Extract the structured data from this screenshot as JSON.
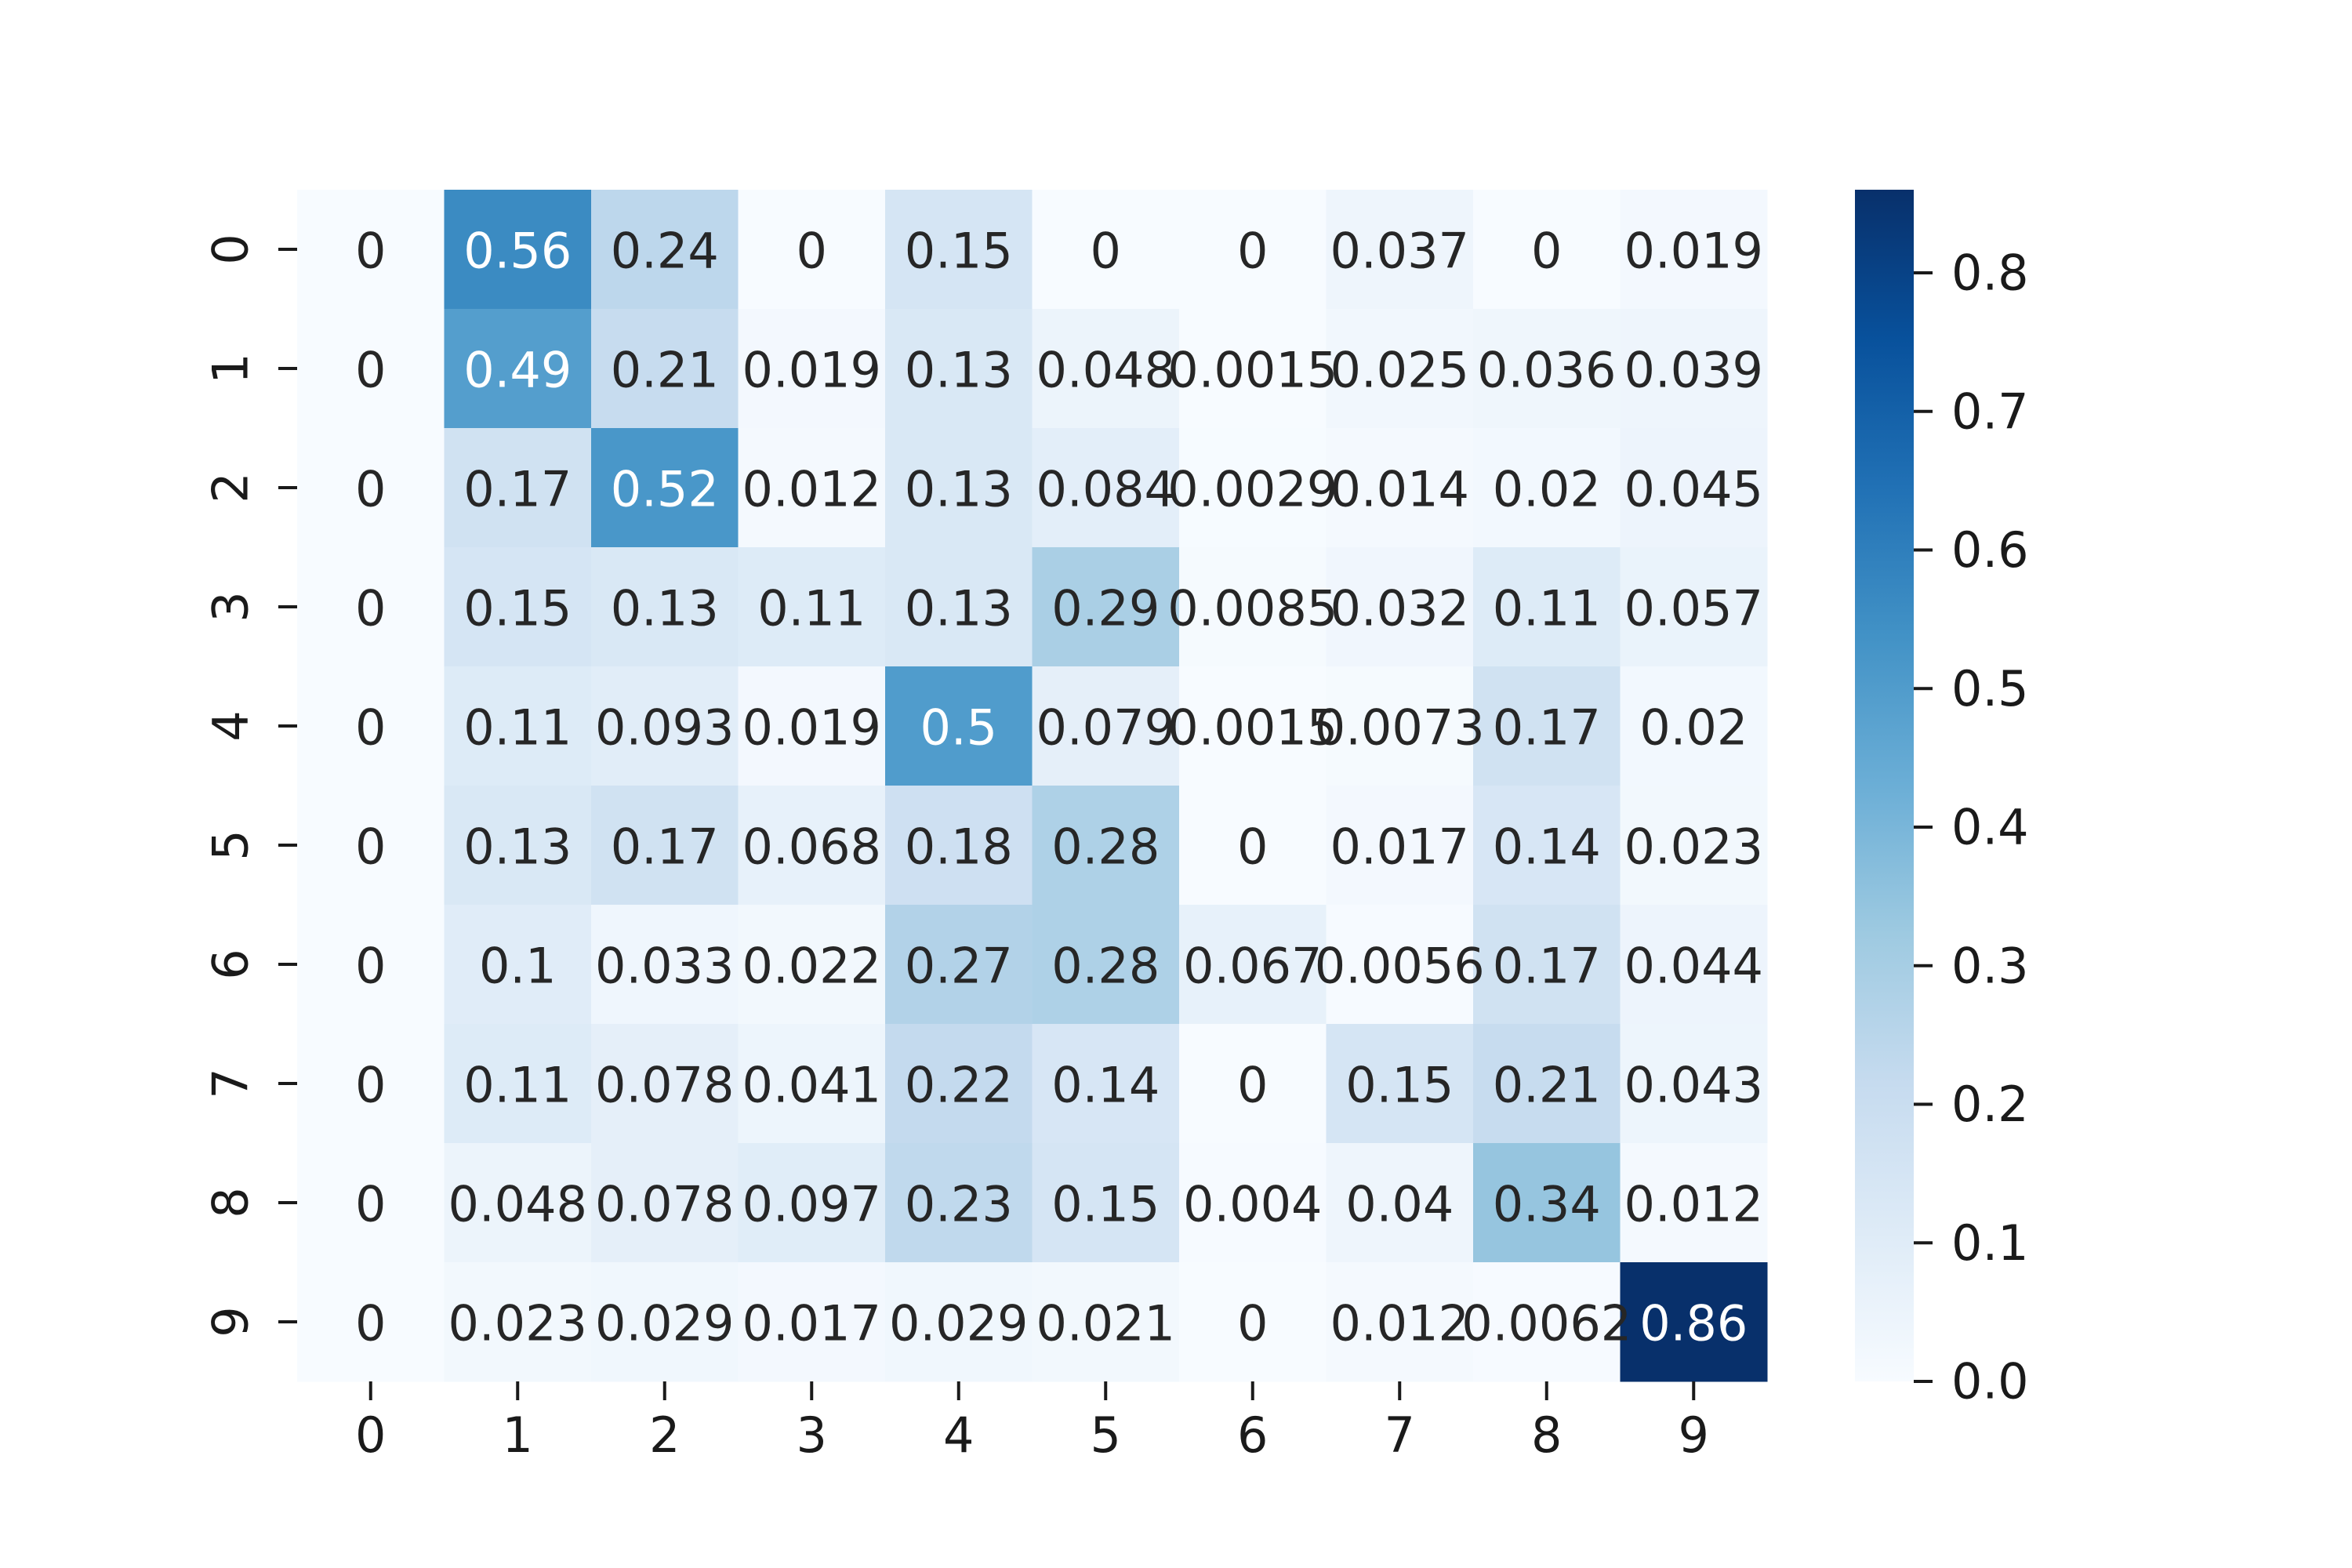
{
  "chart_data": {
    "type": "heatmap",
    "x_categories": [
      "0",
      "1",
      "2",
      "3",
      "4",
      "5",
      "6",
      "7",
      "8",
      "9"
    ],
    "y_categories": [
      "0",
      "1",
      "2",
      "3",
      "4",
      "5",
      "6",
      "7",
      "8",
      "9"
    ],
    "values": [
      [
        0,
        0.56,
        0.24,
        0,
        0.15,
        0,
        0,
        0.037,
        0,
        0.019
      ],
      [
        0,
        0.49,
        0.21,
        0.019,
        0.13,
        0.048,
        0.0015,
        0.025,
        0.036,
        0.039
      ],
      [
        0,
        0.17,
        0.52,
        0.012,
        0.13,
        0.084,
        0.0029,
        0.014,
        0.02,
        0.045
      ],
      [
        0,
        0.15,
        0.13,
        0.11,
        0.13,
        0.29,
        0.0085,
        0.032,
        0.11,
        0.057
      ],
      [
        0,
        0.11,
        0.093,
        0.019,
        0.5,
        0.079,
        0.0015,
        0.0073,
        0.17,
        0.02
      ],
      [
        0,
        0.13,
        0.17,
        0.068,
        0.18,
        0.28,
        0,
        0.017,
        0.14,
        0.023
      ],
      [
        0,
        0.1,
        0.033,
        0.022,
        0.27,
        0.28,
        0.067,
        0.0056,
        0.17,
        0.044
      ],
      [
        0,
        0.11,
        0.078,
        0.041,
        0.22,
        0.14,
        0,
        0.15,
        0.21,
        0.043
      ],
      [
        0,
        0.048,
        0.078,
        0.097,
        0.23,
        0.15,
        0.004,
        0.04,
        0.34,
        0.012
      ],
      [
        0,
        0.023,
        0.029,
        0.017,
        0.029,
        0.021,
        0,
        0.012,
        0.0062,
        0.86
      ]
    ],
    "value_labels": [
      [
        "0",
        "0.56",
        "0.24",
        "0",
        "0.15",
        "0",
        "0",
        "0.037",
        "0",
        "0.019"
      ],
      [
        "0",
        "0.49",
        "0.21",
        "0.019",
        "0.13",
        "0.048",
        "0.0015",
        "0.025",
        "0.036",
        "0.039"
      ],
      [
        "0",
        "0.17",
        "0.52",
        "0.012",
        "0.13",
        "0.084",
        "0.0029",
        "0.014",
        "0.02",
        "0.045"
      ],
      [
        "0",
        "0.15",
        "0.13",
        "0.11",
        "0.13",
        "0.29",
        "0.0085",
        "0.032",
        "0.11",
        "0.057"
      ],
      [
        "0",
        "0.11",
        "0.093",
        "0.019",
        "0.5",
        "0.079",
        "0.0015",
        "0.0073",
        "0.17",
        "0.02"
      ],
      [
        "0",
        "0.13",
        "0.17",
        "0.068",
        "0.18",
        "0.28",
        "0",
        "0.017",
        "0.14",
        "0.023"
      ],
      [
        "0",
        "0.1",
        "0.033",
        "0.022",
        "0.27",
        "0.28",
        "0.067",
        "0.0056",
        "0.17",
        "0.044"
      ],
      [
        "0",
        "0.11",
        "0.078",
        "0.041",
        "0.22",
        "0.14",
        "0",
        "0.15",
        "0.21",
        "0.043"
      ],
      [
        "0",
        "0.048",
        "0.078",
        "0.097",
        "0.23",
        "0.15",
        "0.004",
        "0.04",
        "0.34",
        "0.012"
      ],
      [
        "0",
        "0.023",
        "0.029",
        "0.017",
        "0.029",
        "0.021",
        "0",
        "0.012",
        "0.0062",
        "0.86"
      ]
    ],
    "colorbar": {
      "min": 0,
      "max": 0.86,
      "ticks": [
        0.0,
        0.1,
        0.2,
        0.3,
        0.4,
        0.5,
        0.6,
        0.7,
        0.8
      ],
      "tick_labels": [
        "0.0",
        "0.1",
        "0.2",
        "0.3",
        "0.4",
        "0.5",
        "0.6",
        "0.7",
        "0.8"
      ]
    },
    "colormap": "Blues",
    "colormap_stops": [
      "#f7fbff",
      "#deebf7",
      "#c6dbef",
      "#9ecae1",
      "#6baed6",
      "#4292c6",
      "#2171b5",
      "#08519c",
      "#08306b"
    ],
    "annotation_text_dark": "#262626",
    "annotation_text_light": "#ffffff",
    "title": "",
    "xlabel": "",
    "ylabel": ""
  }
}
